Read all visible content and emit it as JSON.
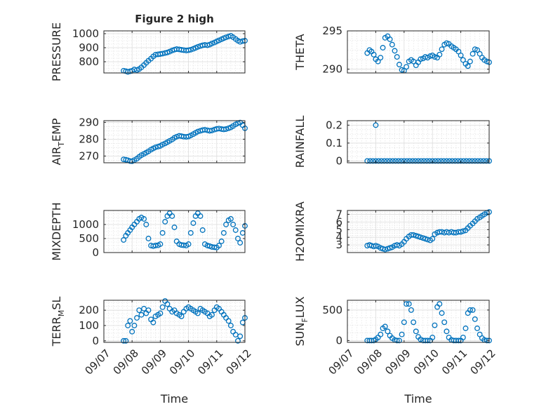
{
  "figure": {
    "title": "Figure 2 high",
    "marker_color": "#0072BD",
    "xlabel": "Time",
    "x_tick_labels": [
      "09/07",
      "09/08",
      "09/09",
      "09/10",
      "09/11",
      "09/12"
    ]
  },
  "chart_data": [
    {
      "type": "scatter",
      "ylabel": "PRESSURE",
      "ylabel_sub": "",
      "ylabel_tail": "",
      "title": "Figure 2 high",
      "xlim": [
        0,
        5
      ],
      "ylim": [
        720,
        1020
      ],
      "yticks": [
        800,
        900,
        1000
      ],
      "x": [
        0.7,
        0.78,
        0.85,
        0.93,
        1.0,
        1.08,
        1.17,
        1.25,
        1.33,
        1.42,
        1.5,
        1.58,
        1.67,
        1.75,
        1.83,
        1.92,
        2.0,
        2.08,
        2.17,
        2.25,
        2.33,
        2.42,
        2.5,
        2.58,
        2.67,
        2.75,
        2.83,
        2.92,
        3.0,
        3.08,
        3.17,
        3.25,
        3.33,
        3.42,
        3.5,
        3.58,
        3.67,
        3.75,
        3.83,
        3.92,
        4.0,
        4.08,
        4.17,
        4.25,
        4.33,
        4.42,
        4.5,
        4.58,
        4.67,
        4.75,
        4.83,
        4.92,
        5.0
      ],
      "y": [
        736,
        733,
        728,
        732,
        735,
        745,
        741,
        748,
        760,
        776,
        792,
        807,
        822,
        838,
        850,
        853,
        855,
        858,
        862,
        866,
        872,
        880,
        886,
        890,
        888,
        885,
        883,
        880,
        882,
        886,
        892,
        899,
        906,
        912,
        917,
        920,
        918,
        922,
        930,
        937,
        945,
        952,
        960,
        968,
        974,
        980,
        985,
        975,
        962,
        950,
        942,
        947,
        950
      ]
    },
    {
      "type": "scatter",
      "ylabel": "THETA",
      "ylabel_sub": "",
      "ylabel_tail": "",
      "title": "",
      "xlim": [
        0,
        5
      ],
      "ylim": [
        289.5,
        295
      ],
      "yticks": [
        290,
        295
      ],
      "x": [
        0.7,
        0.78,
        0.85,
        0.93,
        1.0,
        1.08,
        1.17,
        1.25,
        1.33,
        1.42,
        1.5,
        1.58,
        1.67,
        1.75,
        1.83,
        1.92,
        2.0,
        2.08,
        2.17,
        2.25,
        2.33,
        2.42,
        2.5,
        2.58,
        2.67,
        2.75,
        2.83,
        2.92,
        3.0,
        3.08,
        3.17,
        3.25,
        3.33,
        3.42,
        3.5,
        3.58,
        3.67,
        3.75,
        3.83,
        3.92,
        4.0,
        4.08,
        4.17,
        4.25,
        4.33,
        4.42,
        4.5,
        4.58,
        4.67,
        4.75,
        4.83,
        4.92,
        5.0
      ],
      "y": [
        292.1,
        292.5,
        292.3,
        291.9,
        291.3,
        291.0,
        291.5,
        292.8,
        294.1,
        294.3,
        293.9,
        293.2,
        292.4,
        291.6,
        290.6,
        289.9,
        289.8,
        290.3,
        291.0,
        291.2,
        291.0,
        290.5,
        290.9,
        291.3,
        291.4,
        291.6,
        291.5,
        291.7,
        291.8,
        291.6,
        291.5,
        291.9,
        292.6,
        293.2,
        293.4,
        293.3,
        293.0,
        292.8,
        292.6,
        292.3,
        291.8,
        291.2,
        290.7,
        290.4,
        291.0,
        292.0,
        292.6,
        292.5,
        292.0,
        291.5,
        291.2,
        291.0,
        290.9
      ]
    },
    {
      "type": "scatter",
      "ylabel": "AIR",
      "ylabel_sub": "T",
      "ylabel_tail": "EMP",
      "title": "",
      "xlim": [
        0,
        5
      ],
      "ylim": [
        266,
        291
      ],
      "yticks": [
        270,
        280,
        290
      ],
      "x": [
        0.7,
        0.78,
        0.85,
        0.93,
        1.0,
        1.08,
        1.17,
        1.25,
        1.33,
        1.42,
        1.5,
        1.58,
        1.67,
        1.75,
        1.83,
        1.92,
        2.0,
        2.08,
        2.17,
        2.25,
        2.33,
        2.42,
        2.5,
        2.58,
        2.67,
        2.75,
        2.83,
        2.92,
        3.0,
        3.08,
        3.17,
        3.25,
        3.33,
        3.42,
        3.5,
        3.58,
        3.67,
        3.75,
        3.83,
        3.92,
        4.0,
        4.08,
        4.17,
        4.25,
        4.33,
        4.42,
        4.5,
        4.58,
        4.67,
        4.75,
        4.83,
        4.92,
        5.0
      ],
      "y": [
        268,
        267.8,
        267.5,
        267,
        266.9,
        267.6,
        268.4,
        269.5,
        270.5,
        271.3,
        272.0,
        272.8,
        273.8,
        274.5,
        275.2,
        275.6,
        276.0,
        276.8,
        277.5,
        278.2,
        279.0,
        279.8,
        280.8,
        281.5,
        282.0,
        281.8,
        281.5,
        281.4,
        281.6,
        282.2,
        283.0,
        283.8,
        284.5,
        285.0,
        285.4,
        285.6,
        285.3,
        285.0,
        285.2,
        285.7,
        286.1,
        286.3,
        286.0,
        285.8,
        286.0,
        286.5,
        287.0,
        287.8,
        288.8,
        289.5,
        289.9,
        288.3,
        286.5
      ]
    },
    {
      "type": "scatter",
      "ylabel": "RAINFALL",
      "ylabel_sub": "",
      "ylabel_tail": "",
      "title": "",
      "xlim": [
        0,
        5
      ],
      "ylim": [
        -0.01,
        0.225
      ],
      "yticks": [
        0,
        0.1,
        0.2
      ],
      "x": [
        0.7,
        0.8,
        0.9,
        1.0,
        1.1,
        1.2,
        1.3,
        1.4,
        1.5,
        1.6,
        1.7,
        1.8,
        1.9,
        2.0,
        2.1,
        2.2,
        2.3,
        2.4,
        2.5,
        2.6,
        2.7,
        2.8,
        2.9,
        3.0,
        3.1,
        3.2,
        3.3,
        3.4,
        3.5,
        3.6,
        3.7,
        3.8,
        3.9,
        4.0,
        4.1,
        4.2,
        4.3,
        4.4,
        4.5,
        4.6,
        4.7,
        4.8,
        4.9,
        5.0,
        1.0
      ],
      "y": [
        0,
        0,
        0,
        0,
        0,
        0,
        0,
        0,
        0,
        0,
        0,
        0,
        0,
        0,
        0,
        0,
        0,
        0,
        0,
        0,
        0,
        0,
        0,
        0,
        0,
        0,
        0,
        0,
        0,
        0,
        0,
        0,
        0,
        0,
        0,
        0,
        0,
        0,
        0,
        0,
        0,
        0,
        0,
        0,
        0.2
      ]
    },
    {
      "type": "scatter",
      "ylabel": "MIXDEPTH",
      "ylabel_sub": "",
      "ylabel_tail": "",
      "title": "",
      "xlim": [
        0,
        5
      ],
      "ylim": [
        0,
        1500
      ],
      "yticks": [
        0,
        500,
        1000
      ],
      "x": [
        0.7,
        0.78,
        0.85,
        0.93,
        1.0,
        1.08,
        1.17,
        1.25,
        1.33,
        1.42,
        1.5,
        1.58,
        1.67,
        1.75,
        1.83,
        1.92,
        2.0,
        2.08,
        2.17,
        2.25,
        2.33,
        2.42,
        2.5,
        2.58,
        2.67,
        2.75,
        2.83,
        2.92,
        3.0,
        3.08,
        3.17,
        3.25,
        3.33,
        3.42,
        3.5,
        3.58,
        3.67,
        3.75,
        3.83,
        3.92,
        4.0,
        4.08,
        4.17,
        4.25,
        4.33,
        4.42,
        4.5,
        4.58,
        4.67,
        4.75,
        4.83,
        4.92,
        5.0
      ],
      "y": [
        450,
        600,
        700,
        800,
        900,
        1000,
        1100,
        1200,
        1250,
        1200,
        1000,
        500,
        250,
        230,
        250,
        260,
        300,
        700,
        1100,
        1300,
        1400,
        1300,
        900,
        400,
        300,
        270,
        260,
        250,
        300,
        700,
        1050,
        1300,
        1400,
        1300,
        800,
        300,
        250,
        230,
        200,
        190,
        180,
        250,
        400,
        700,
        1000,
        1150,
        1200,
        1000,
        800,
        500,
        350,
        700,
        950
      ]
    },
    {
      "type": "scatter",
      "ylabel": "H2OMIXRA",
      "ylabel_sub": "",
      "ylabel_tail": "",
      "title": "",
      "xlim": [
        0,
        5
      ],
      "ylim": [
        2,
        7.5
      ],
      "yticks": [
        3,
        4,
        5,
        6,
        7
      ],
      "x": [
        0.7,
        0.78,
        0.85,
        0.93,
        1.0,
        1.08,
        1.17,
        1.25,
        1.33,
        1.42,
        1.5,
        1.58,
        1.67,
        1.75,
        1.83,
        1.92,
        2.0,
        2.08,
        2.17,
        2.25,
        2.33,
        2.42,
        2.5,
        2.58,
        2.67,
        2.75,
        2.83,
        2.92,
        3.0,
        3.08,
        3.17,
        3.25,
        3.33,
        3.42,
        3.5,
        3.58,
        3.67,
        3.75,
        3.83,
        3.92,
        4.0,
        4.08,
        4.17,
        4.25,
        4.33,
        4.42,
        4.5,
        4.58,
        4.67,
        4.75,
        4.83,
        4.92,
        5.0
      ],
      "y": [
        2.9,
        3.0,
        2.9,
        2.8,
        2.9,
        2.8,
        2.6,
        2.5,
        2.4,
        2.5,
        2.6,
        2.7,
        2.9,
        3.0,
        2.9,
        3.1,
        3.4,
        3.8,
        4.1,
        4.3,
        4.3,
        4.2,
        4.1,
        4.0,
        3.9,
        3.8,
        3.7,
        3.6,
        3.8,
        4.4,
        4.6,
        4.7,
        4.7,
        4.6,
        4.7,
        4.6,
        4.7,
        4.6,
        4.6,
        4.7,
        4.7,
        4.8,
        4.9,
        5.2,
        5.5,
        5.8,
        6.1,
        6.4,
        6.6,
        6.8,
        7.0,
        7.2,
        7.3
      ]
    },
    {
      "type": "scatter",
      "ylabel": "TERR",
      "ylabel_sub": "M",
      "ylabel_tail": "SL",
      "title": "",
      "xlim": [
        0,
        5
      ],
      "ylim": [
        -10,
        265
      ],
      "yticks": [
        0,
        100,
        200
      ],
      "x": [
        0.7,
        0.78,
        0.85,
        0.93,
        1.0,
        1.08,
        1.17,
        1.25,
        1.33,
        1.42,
        1.5,
        1.58,
        1.67,
        1.75,
        1.83,
        1.92,
        2.0,
        2.08,
        2.17,
        2.25,
        2.33,
        2.42,
        2.5,
        2.58,
        2.67,
        2.75,
        2.83,
        2.92,
        3.0,
        3.08,
        3.17,
        3.25,
        3.33,
        3.42,
        3.5,
        3.58,
        3.67,
        3.75,
        3.83,
        3.92,
        4.0,
        4.08,
        4.17,
        4.25,
        4.33,
        4.42,
        4.5,
        4.58,
        4.67,
        4.75,
        4.83,
        4.92,
        5.0
      ],
      "y": [
        0,
        0,
        100,
        130,
        60,
        100,
        150,
        200,
        170,
        210,
        180,
        200,
        140,
        120,
        160,
        170,
        180,
        220,
        260,
        240,
        210,
        190,
        200,
        180,
        170,
        160,
        190,
        210,
        220,
        210,
        200,
        190,
        180,
        210,
        200,
        190,
        180,
        160,
        170,
        200,
        220,
        210,
        190,
        170,
        150,
        130,
        100,
        60,
        40,
        0,
        30,
        120,
        150
      ]
    },
    {
      "type": "scatter",
      "ylabel": "SUN",
      "ylabel_sub": "F",
      "ylabel_tail": "LUX",
      "title": "",
      "xlim": [
        0,
        5
      ],
      "ylim": [
        -30,
        660
      ],
      "yticks": [
        0,
        500
      ],
      "x": [
        0.7,
        0.78,
        0.85,
        0.93,
        1.0,
        1.08,
        1.17,
        1.25,
        1.33,
        1.42,
        1.5,
        1.58,
        1.67,
        1.75,
        1.83,
        1.92,
        2.0,
        2.08,
        2.17,
        2.25,
        2.33,
        2.42,
        2.5,
        2.58,
        2.67,
        2.75,
        2.83,
        2.92,
        3.0,
        3.08,
        3.17,
        3.25,
        3.33,
        3.42,
        3.5,
        3.58,
        3.67,
        3.75,
        3.83,
        3.92,
        4.0,
        4.08,
        4.17,
        4.25,
        4.33,
        4.42,
        4.5,
        4.58,
        4.67,
        4.75,
        4.83,
        4.92,
        5.0
      ],
      "y": [
        0,
        0,
        0,
        0,
        20,
        50,
        100,
        200,
        230,
        150,
        80,
        40,
        10,
        0,
        0,
        100,
        300,
        600,
        600,
        500,
        300,
        150,
        60,
        20,
        0,
        0,
        0,
        0,
        50,
        250,
        550,
        600,
        450,
        300,
        150,
        50,
        10,
        0,
        0,
        0,
        0,
        50,
        200,
        450,
        500,
        500,
        350,
        200,
        100,
        40,
        10,
        0,
        0
      ]
    }
  ]
}
